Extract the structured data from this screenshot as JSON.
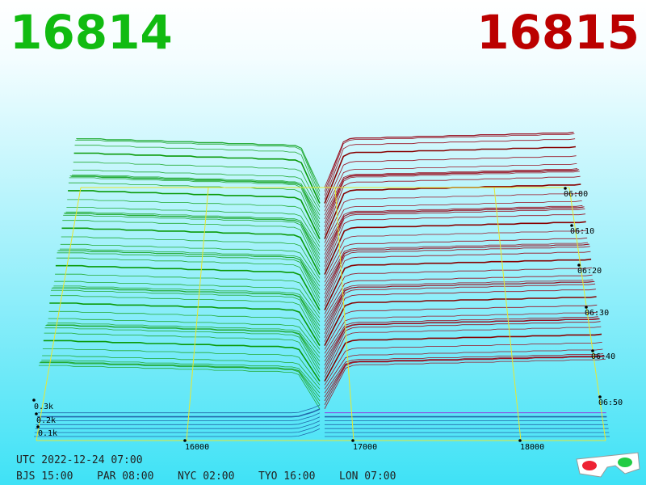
{
  "header": {
    "bid": "16814",
    "ask": "16815"
  },
  "depth_labels": [
    "0.3k",
    "0.2k",
    "0.1k"
  ],
  "price_labels": [
    "16000",
    "17000",
    "18000"
  ],
  "time_labels": [
    "06:00",
    "06:10",
    "06:20",
    "06:30",
    "06:40",
    "06:50"
  ],
  "footer": {
    "utc": "UTC 2022-12-24 07:00",
    "cities": [
      "BJS 15:00",
      "PAR 08:00",
      "NYC 02:00",
      "TYO 16:00",
      "LON 07:00"
    ]
  }
}
